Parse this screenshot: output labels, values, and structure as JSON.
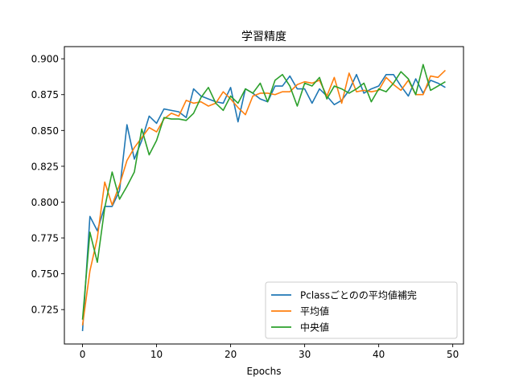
{
  "chart_data": {
    "type": "line",
    "title": "学習精度",
    "xlabel": "Epochs",
    "ylabel": "",
    "xlim": [
      -2.45,
      51.45
    ],
    "ylim": [
      0.701,
      0.9085
    ],
    "xticks": [
      0,
      10,
      20,
      30,
      40,
      50
    ],
    "yticks": [
      0.725,
      0.75,
      0.775,
      0.8,
      0.825,
      0.85,
      0.875,
      0.9
    ],
    "ytick_labels": [
      "0.725",
      "0.750",
      "0.775",
      "0.800",
      "0.825",
      "0.850",
      "0.875",
      "0.900"
    ],
    "grid": false,
    "legend_position": "lower-right",
    "series": [
      {
        "name": "Pclassごとのの平均値補完",
        "color": "#1f77b4",
        "x": [
          0,
          1,
          2,
          3,
          4,
          5,
          6,
          7,
          8,
          9,
          10,
          11,
          12,
          13,
          14,
          15,
          16,
          17,
          18,
          19,
          20,
          21,
          22,
          23,
          24,
          25,
          26,
          27,
          28,
          29,
          30,
          31,
          32,
          33,
          34,
          35,
          36,
          37,
          38,
          39,
          40,
          41,
          42,
          43,
          44,
          45,
          46,
          47,
          48,
          49
        ],
        "values": [
          0.71,
          0.79,
          0.78,
          0.797,
          0.797,
          0.808,
          0.854,
          0.83,
          0.843,
          0.86,
          0.855,
          0.865,
          0.864,
          0.863,
          0.859,
          0.879,
          0.874,
          0.872,
          0.87,
          0.869,
          0.88,
          0.856,
          0.879,
          0.876,
          0.872,
          0.87,
          0.881,
          0.881,
          0.888,
          0.879,
          0.879,
          0.869,
          0.879,
          0.874,
          0.868,
          0.871,
          0.878,
          0.889,
          0.876,
          0.879,
          0.881,
          0.889,
          0.889,
          0.881,
          0.874,
          0.886,
          0.876,
          0.885,
          0.883,
          0.88
        ]
      },
      {
        "name": "平均値",
        "color": "#ff7f0e",
        "x": [
          0,
          1,
          2,
          3,
          4,
          5,
          6,
          7,
          8,
          9,
          10,
          11,
          12,
          13,
          14,
          15,
          16,
          17,
          18,
          19,
          20,
          21,
          22,
          23,
          24,
          25,
          26,
          27,
          28,
          29,
          30,
          31,
          32,
          33,
          34,
          35,
          36,
          37,
          38,
          39,
          40,
          41,
          42,
          43,
          44,
          45,
          46,
          47,
          48,
          49
        ],
        "values": [
          0.714,
          0.752,
          0.775,
          0.814,
          0.798,
          0.812,
          0.829,
          0.838,
          0.845,
          0.852,
          0.849,
          0.858,
          0.862,
          0.86,
          0.871,
          0.869,
          0.87,
          0.867,
          0.869,
          0.877,
          0.872,
          0.866,
          0.861,
          0.874,
          0.876,
          0.876,
          0.875,
          0.877,
          0.877,
          0.882,
          0.884,
          0.883,
          0.885,
          0.874,
          0.887,
          0.869,
          0.89,
          0.877,
          0.878,
          0.877,
          0.878,
          0.887,
          0.882,
          0.878,
          0.885,
          0.875,
          0.875,
          0.888,
          0.887,
          0.892
        ]
      },
      {
        "name": "中央値",
        "color": "#2ca02c",
        "x": [
          0,
          1,
          2,
          3,
          4,
          5,
          6,
          7,
          8,
          9,
          10,
          11,
          12,
          13,
          14,
          15,
          16,
          17,
          18,
          19,
          20,
          21,
          22,
          23,
          24,
          25,
          26,
          27,
          28,
          29,
          30,
          31,
          32,
          33,
          34,
          35,
          36,
          37,
          38,
          39,
          40,
          41,
          42,
          43,
          44,
          45,
          46,
          47,
          48,
          49
        ],
        "values": [
          0.718,
          0.779,
          0.758,
          0.796,
          0.821,
          0.802,
          0.811,
          0.821,
          0.851,
          0.833,
          0.843,
          0.859,
          0.858,
          0.858,
          0.857,
          0.862,
          0.873,
          0.88,
          0.869,
          0.864,
          0.874,
          0.869,
          0.879,
          0.876,
          0.883,
          0.87,
          0.885,
          0.889,
          0.881,
          0.867,
          0.883,
          0.881,
          0.887,
          0.872,
          0.881,
          0.879,
          0.876,
          0.879,
          0.883,
          0.87,
          0.879,
          0.877,
          0.883,
          0.891,
          0.886,
          0.875,
          0.896,
          0.878,
          0.881,
          0.884
        ]
      }
    ]
  }
}
